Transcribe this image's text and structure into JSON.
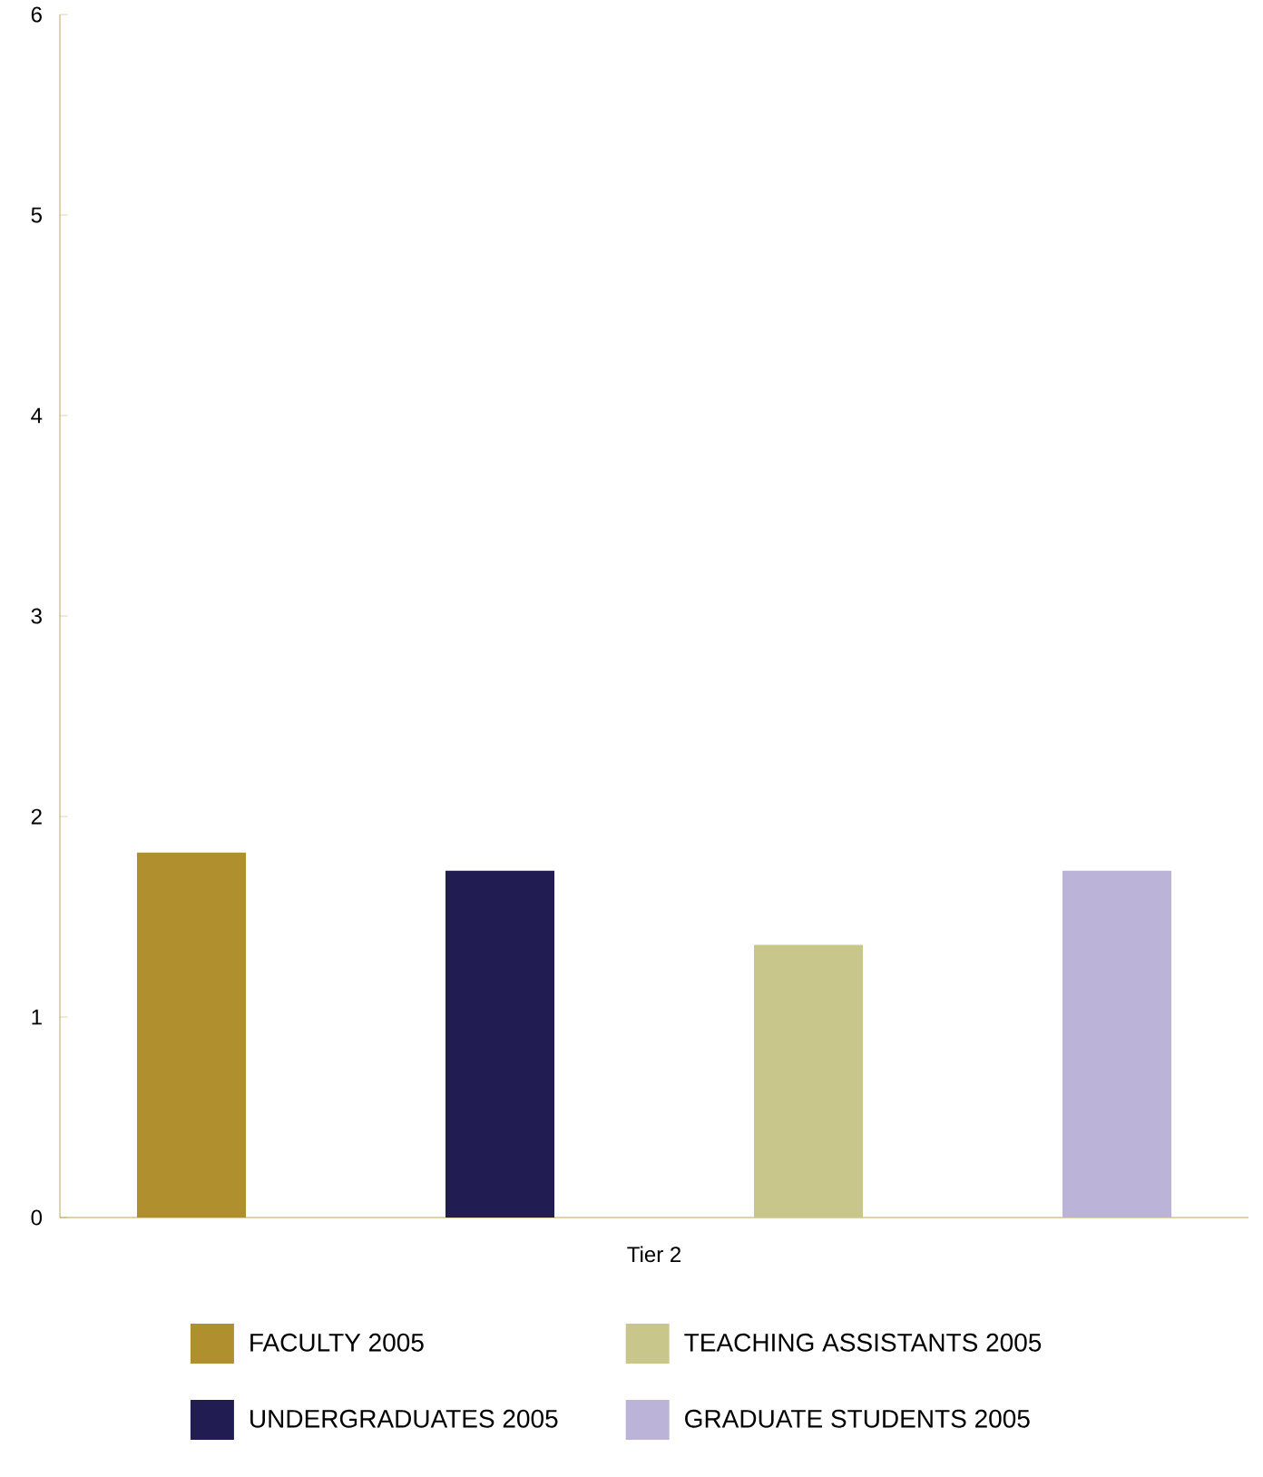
{
  "chart_data": {
    "type": "bar",
    "categories": [
      "Tier 2"
    ],
    "series": [
      {
        "name": "FACULTY 2005",
        "color": "#b08f2e",
        "values": [
          1.82
        ]
      },
      {
        "name": "UNDERGRADUATES 2005",
        "color": "#211c52",
        "values": [
          1.73
        ]
      },
      {
        "name": "TEACHING ASSISTANTS 2005",
        "color": "#c8c68a",
        "values": [
          1.36
        ]
      },
      {
        "name": "GRADUATE STUDENTS 2005",
        "color": "#bcb4d8",
        "values": [
          1.73
        ]
      }
    ],
    "ylim": [
      0,
      6
    ],
    "yticks": [
      0,
      1,
      2,
      3,
      4,
      5,
      6
    ],
    "legend": "bottom",
    "grid": false
  }
}
